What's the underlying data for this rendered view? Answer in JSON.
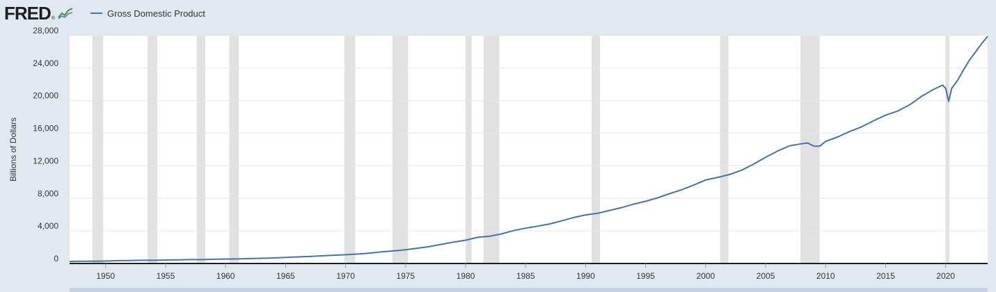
{
  "logo": {
    "text": "FRED",
    "reg": "®",
    "icon": "fred-chart-icon"
  },
  "colors": {
    "line": "#4572a7",
    "recession": "#e1e1e1",
    "background": "#e1e9f0",
    "plot": "#ffffff"
  },
  "chart_data": {
    "type": "line",
    "title": "",
    "xlabel": "",
    "ylabel": "Billions of Dollars",
    "xlim": [
      1947,
      2023.5
    ],
    "ylim": [
      0,
      28000
    ],
    "yticks": [
      0,
      4000,
      8000,
      12000,
      16000,
      20000,
      24000,
      28000
    ],
    "ytick_labels": [
      "0",
      "4,000",
      "8,000",
      "12,000",
      "16,000",
      "20,000",
      "24,000",
      "28,000"
    ],
    "xticks": [
      1950,
      1955,
      1960,
      1965,
      1970,
      1975,
      1980,
      1985,
      1990,
      1995,
      2000,
      2005,
      2010,
      2015,
      2020
    ],
    "xtick_labels": [
      "1950",
      "1955",
      "1960",
      "1965",
      "1970",
      "1975",
      "1980",
      "1985",
      "1990",
      "1995",
      "2000",
      "2005",
      "2010",
      "2015",
      "2020"
    ],
    "grid": true,
    "legend_position": "top-left",
    "recessions": [
      [
        1948.9,
        1949.8
      ],
      [
        1953.5,
        1954.3
      ],
      [
        1957.6,
        1958.3
      ],
      [
        1960.3,
        1961.1
      ],
      [
        1969.9,
        1970.8
      ],
      [
        1973.9,
        1975.2
      ],
      [
        1980.0,
        1980.5
      ],
      [
        1981.5,
        1982.8
      ],
      [
        1990.5,
        1991.2
      ],
      [
        2001.2,
        2001.9
      ],
      [
        2007.9,
        2009.5
      ],
      [
        2020.0,
        2020.3
      ]
    ],
    "series": [
      {
        "name": "Gross Domestic Product",
        "x": [
          1947,
          1948,
          1949,
          1950,
          1951,
          1952,
          1953,
          1954,
          1955,
          1956,
          1957,
          1958,
          1959,
          1960,
          1961,
          1962,
          1963,
          1964,
          1965,
          1966,
          1967,
          1968,
          1969,
          1970,
          1971,
          1972,
          1973,
          1974,
          1975,
          1976,
          1977,
          1978,
          1979,
          1980,
          1981,
          1982,
          1983,
          1984,
          1985,
          1986,
          1987,
          1988,
          1989,
          1990,
          1991,
          1992,
          1993,
          1994,
          1995,
          1996,
          1997,
          1998,
          1999,
          2000,
          2001,
          2002,
          2003,
          2004,
          2005,
          2006,
          2007,
          2008,
          2008.5,
          2009,
          2009.5,
          2010,
          2011,
          2012,
          2013,
          2014,
          2015,
          2016,
          2017,
          2018,
          2019,
          2019.75,
          2020.0,
          2020.25,
          2020.5,
          2021,
          2021.5,
          2022,
          2022.5,
          2023,
          2023.5
        ],
        "values": [
          245,
          270,
          272,
          300,
          350,
          370,
          390,
          390,
          425,
          450,
          475,
          480,
          520,
          545,
          560,
          605,
          640,
          685,
          745,
          815,
          860,
          940,
          1020,
          1075,
          1160,
          1275,
          1425,
          1545,
          1685,
          1875,
          2085,
          2355,
          2630,
          2860,
          3210,
          3345,
          3640,
          4040,
          4340,
          4580,
          4855,
          5235,
          5640,
          5965,
          6160,
          6520,
          6860,
          7290,
          7640,
          8070,
          8580,
          9060,
          9630,
          10250,
          10580,
          10930,
          11460,
          12210,
          13040,
          13810,
          14450,
          14710,
          14800,
          14420,
          14400,
          14990,
          15540,
          16200,
          16780,
          17530,
          18220,
          18710,
          19480,
          20530,
          21380,
          21900,
          21500,
          19900,
          21500,
          22500,
          23800,
          25000,
          26000,
          27000,
          27900
        ]
      }
    ]
  }
}
